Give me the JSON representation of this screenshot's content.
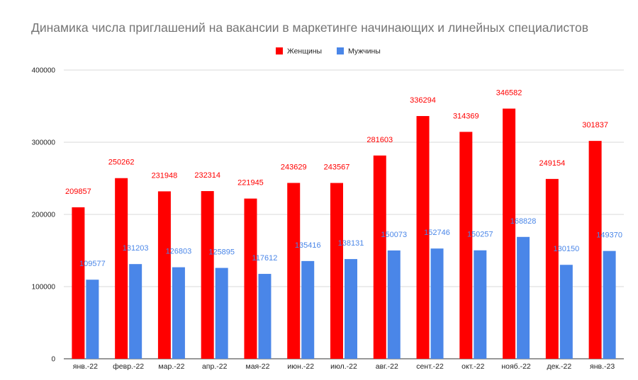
{
  "chart_data": {
    "type": "bar",
    "title": "Динамика числа приглашений на вакансии в маркетинге начинающих и линейных специалистов",
    "xlabel": "",
    "ylabel": "",
    "ylim": [
      0,
      400000
    ],
    "yticks": [
      "0",
      "100000",
      "200000",
      "300000",
      "400000"
    ],
    "grid": true,
    "legend_position": "top",
    "categories": [
      "янв.-22",
      "февр.-22",
      "мар.-22",
      "апр.-22",
      "мая-22",
      "июн.-22",
      "июл.-22",
      "авг.-22",
      "сент.-22",
      "окт.-22",
      "нояб.-22",
      "дек.-22",
      "янв.-23"
    ],
    "series": [
      {
        "name": "Женщины",
        "color": "#ff0000",
        "values": [
          209857,
          250262,
          231948,
          232314,
          221945,
          243629,
          243567,
          281603,
          336294,
          314369,
          346582,
          249154,
          301837
        ]
      },
      {
        "name": "Мужчины",
        "color": "#4a86e8",
        "values": [
          109577,
          131203,
          126803,
          125895,
          117612,
          135416,
          138131,
          150073,
          152746,
          150257,
          168828,
          130150,
          149370
        ]
      }
    ]
  }
}
